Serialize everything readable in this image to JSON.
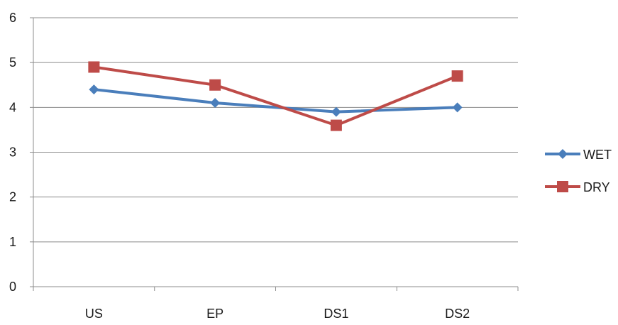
{
  "chart_data": {
    "type": "line",
    "categories": [
      "US",
      "EP",
      "DS1",
      "DS2"
    ],
    "series": [
      {
        "name": "WET",
        "values": [
          4.4,
          4.1,
          3.9,
          4.0
        ],
        "color": "#4a7ebb",
        "marker": "diamond"
      },
      {
        "name": "DRY",
        "values": [
          4.9,
          4.5,
          3.6,
          4.7
        ],
        "color": "#be4b48",
        "marker": "square"
      }
    ],
    "ylim": [
      0,
      6
    ],
    "yticks": [
      0,
      1,
      2,
      3,
      4,
      5,
      6
    ],
    "grid": true,
    "legend_position": "right"
  }
}
